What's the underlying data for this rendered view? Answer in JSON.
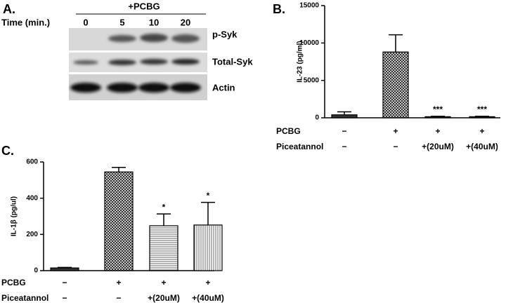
{
  "blot": {
    "panel": "A.",
    "treatment": "+PCBG",
    "time_label": "Time (min.)",
    "times": [
      "0",
      "5",
      "10",
      "20"
    ],
    "rows": [
      "p-Syk",
      "Total-Syk",
      "Actin"
    ]
  },
  "chart_data": [
    {
      "type": "bar",
      "panel": "B.",
      "ylabel": "IL-23 (pg/ml)",
      "categories": [
        null,
        null,
        null,
        null
      ],
      "values": [
        400,
        8800,
        150,
        150
      ],
      "errors": [
        400,
        2300,
        50,
        50
      ],
      "annotations": [
        null,
        null,
        "***",
        "***"
      ],
      "patterns": [
        "solid",
        "crosshatch",
        "solid",
        "solid"
      ],
      "color": "#333333",
      "ylim": [
        0,
        15000
      ],
      "yticks": [
        0,
        5000,
        10000,
        15000
      ],
      "conditions": [
        {
          "name": "PCBG",
          "values": [
            "−",
            "+",
            "+",
            "+"
          ]
        },
        {
          "name": "Piceatannol",
          "values": [
            "−",
            "−",
            "+(20uM)",
            "+(40uM)"
          ]
        }
      ]
    },
    {
      "type": "bar",
      "panel": "C.",
      "ylabel": "IL-1β (pg/ul)",
      "categories": [
        null,
        null,
        null,
        null
      ],
      "values": [
        15,
        545,
        248,
        252
      ],
      "errors": [
        3,
        25,
        65,
        125
      ],
      "annotations": [
        null,
        null,
        "*",
        "*"
      ],
      "patterns": [
        "solid",
        "crosshatch",
        "hlines",
        "vlines"
      ],
      "color": "#333333",
      "ylim": [
        0,
        600
      ],
      "yticks": [
        0,
        200,
        400,
        600
      ],
      "conditions": [
        {
          "name": "PCBG",
          "values": [
            "−",
            "+",
            "+",
            "+"
          ]
        },
        {
          "name": "Piceatannol",
          "values": [
            "−",
            "−",
            "+(20uM)",
            "+(40uM)"
          ]
        }
      ]
    }
  ]
}
